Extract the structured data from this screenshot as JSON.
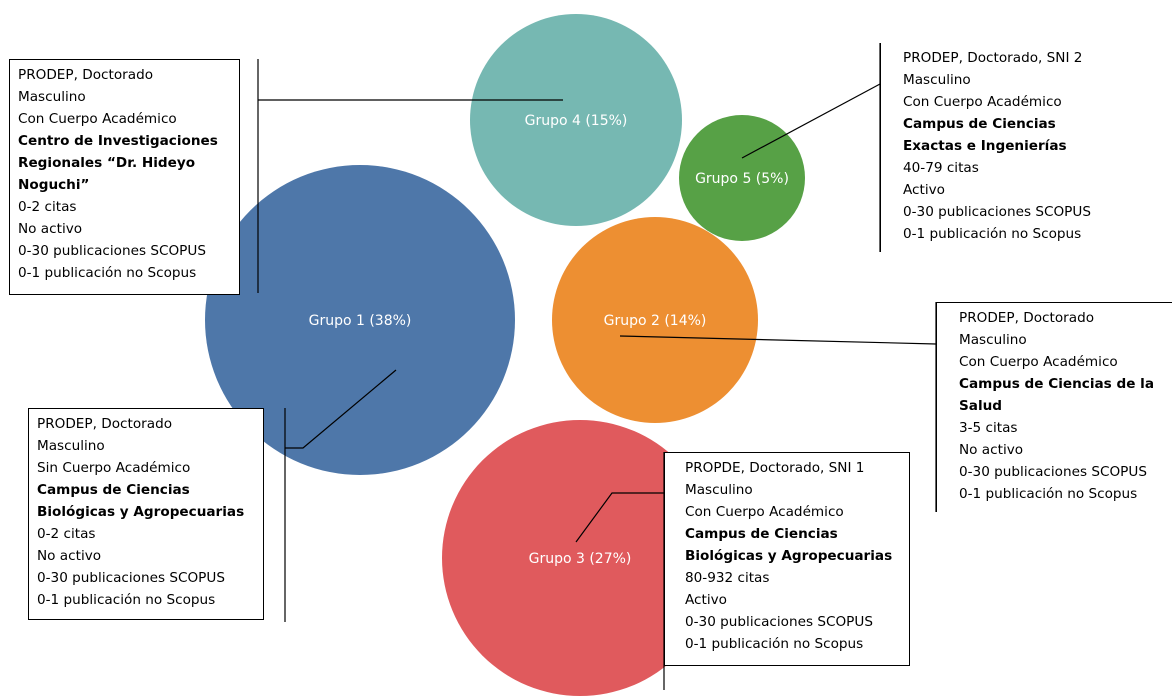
{
  "colors": {
    "grupo1": "#4e77a9",
    "grupo2": "#ed8f32",
    "grupo3": "#e05a5d",
    "grupo4": "#76b8b2",
    "grupo5": "#57a146",
    "connector": "#000000"
  },
  "chart_data": {
    "type": "bubble",
    "title": "",
    "series": [
      {
        "name": "Grupo 1",
        "percent": 38,
        "label": "Grupo 1 (38%)"
      },
      {
        "name": "Grupo 2",
        "percent": 14,
        "label": "Grupo 2 (14%)"
      },
      {
        "name": "Grupo 3",
        "percent": 27,
        "label": "Grupo 3 (27%)"
      },
      {
        "name": "Grupo 4",
        "percent": 15,
        "label": "Grupo 4 (15%)"
      },
      {
        "name": "Grupo 5",
        "percent": 5,
        "label": "Grupo 5 (5%)"
      }
    ],
    "annotations": {
      "grupo4": {
        "lines": [
          {
            "text": "PRODEP, Doctorado",
            "bold": false
          },
          {
            "text": "Masculino",
            "bold": false
          },
          {
            "text": "Con Cuerpo Académico",
            "bold": false
          },
          {
            "text": "Centro de Investigaciones Regionales “Dr. Hideyo Noguchi”",
            "bold": true
          },
          {
            "text": "0-2 citas",
            "bold": false
          },
          {
            "text": "No activo",
            "bold": false
          },
          {
            "text": "0-30 publicaciones SCOPUS",
            "bold": false
          },
          {
            "text": "0-1 publicación no Scopus",
            "bold": false
          }
        ]
      },
      "grupo5": {
        "lines": [
          {
            "text": "PRODEP, Doctorado, SNI 2",
            "bold": false
          },
          {
            "text": "Masculino",
            "bold": false
          },
          {
            "text": "Con Cuerpo Académico",
            "bold": false
          },
          {
            "text": "Campus de Ciencias Exactas e Ingenierías",
            "bold": true
          },
          {
            "text": "40-79 citas",
            "bold": false
          },
          {
            "text": "Activo",
            "bold": false
          },
          {
            "text": "0-30 publicaciones SCOPUS",
            "bold": false
          },
          {
            "text": "0-1 publicación no Scopus",
            "bold": false
          }
        ]
      },
      "grupo2": {
        "lines": [
          {
            "text": "PRODEP, Doctorado",
            "bold": false
          },
          {
            "text": "Masculino",
            "bold": false
          },
          {
            "text": "Con Cuerpo Académico",
            "bold": false
          },
          {
            "text": "Campus de Ciencias de la Salud",
            "bold": true
          },
          {
            "text": "3-5 citas",
            "bold": false
          },
          {
            "text": "No activo",
            "bold": false
          },
          {
            "text": "0-30 publicaciones SCOPUS",
            "bold": false
          },
          {
            "text": "0-1 publicación no Scopus",
            "bold": false
          }
        ]
      },
      "grupo1": {
        "lines": [
          {
            "text": "PRODEP, Doctorado",
            "bold": false
          },
          {
            "text": "Masculino",
            "bold": false
          },
          {
            "text": "Sin Cuerpo Académico",
            "bold": false
          },
          {
            "text": "Campus de Ciencias Biológicas y Agropecuarias",
            "bold": true
          },
          {
            "text": "0-2 citas",
            "bold": false
          },
          {
            "text": "No activo",
            "bold": false
          },
          {
            "text": "0-30 publicaciones SCOPUS",
            "bold": false
          },
          {
            "text": "0-1 publicación no Scopus",
            "bold": false
          }
        ]
      },
      "grupo3": {
        "lines": [
          {
            "text": "PROPDE, Doctorado, SNI 1",
            "bold": false
          },
          {
            "text": "Masculino",
            "bold": false
          },
          {
            "text": "Con Cuerpo Académico",
            "bold": false
          },
          {
            "text": "Campus de Ciencias Biológicas y Agropecuarias",
            "bold": true
          },
          {
            "text": "80-932 citas",
            "bold": false
          },
          {
            "text": "Activo",
            "bold": false
          },
          {
            "text": "0-30 publicaciones SCOPUS",
            "bold": false
          },
          {
            "text": "0-1 publicación no Scopus",
            "bold": false
          }
        ]
      }
    }
  }
}
